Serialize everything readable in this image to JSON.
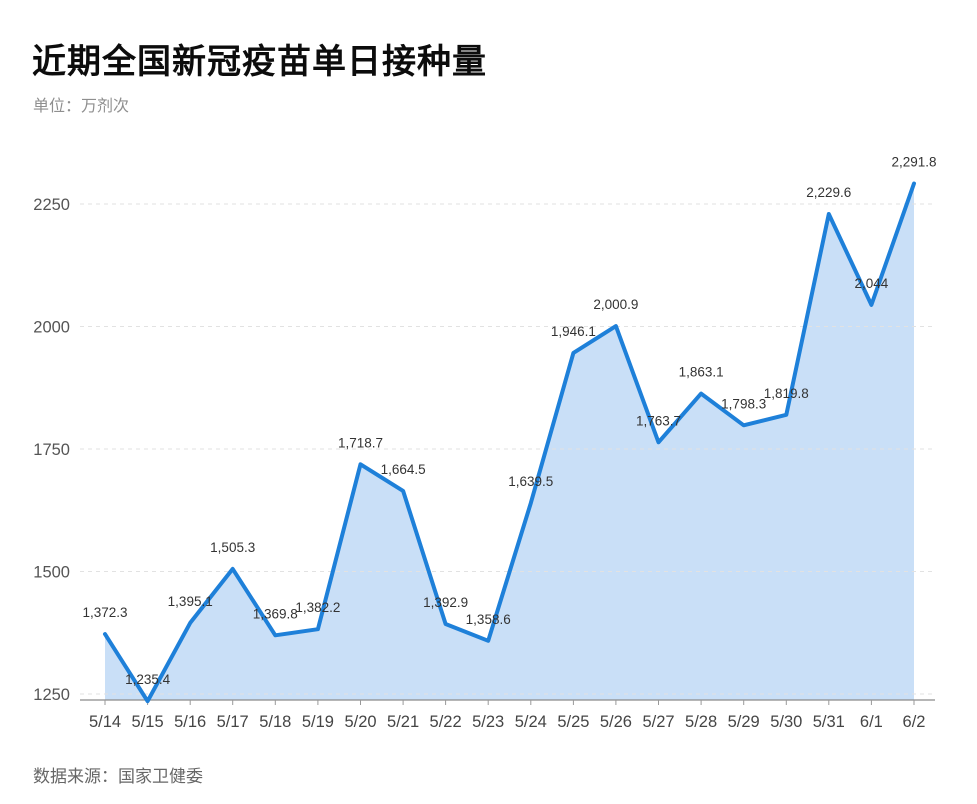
{
  "page": {
    "title": "近期全国新冠疫苗单日接种量",
    "subtitle": "单位：万剂次",
    "source": "数据来源：国家卫健委"
  },
  "colors": {
    "line": "#1e80d9",
    "area_fill": "#c9dff7",
    "grid": "#e2e2e2",
    "axis": "#8a8a8a",
    "tick": "#999999",
    "data_label": "#333333",
    "y_axis_label": "#555555",
    "x_axis_label": "#454545"
  },
  "chart_data": {
    "type": "area",
    "title": "近期全国新冠疫苗单日接种量",
    "unit_label": "单位：万剂次",
    "source_label": "数据来源：国家卫健委",
    "xlabel": "",
    "ylabel": "万剂次",
    "categories": [
      "5/14",
      "5/15",
      "5/16",
      "5/17",
      "5/18",
      "5/19",
      "5/20",
      "5/21",
      "5/22",
      "5/23",
      "5/24",
      "5/25",
      "5/26",
      "5/27",
      "5/28",
      "5/29",
      "5/30",
      "5/31",
      "6/1",
      "6/2"
    ],
    "values": [
      1372.3,
      1235.4,
      1395.1,
      1505.3,
      1369.8,
      1382.2,
      1718.7,
      1664.5,
      1392.9,
      1358.6,
      1639.5,
      1946.1,
      2000.9,
      1763.7,
      1863.1,
      1798.3,
      1819.8,
      2229.6,
      2044,
      2291.8
    ],
    "value_labels": [
      "1,372.3",
      "1,235.4",
      "1,395.1",
      "1,505.3",
      "1,369.8",
      "1,382.2",
      "1,718.7",
      "1,664.5",
      "1,392.9",
      "1,358.6",
      "1,639.5",
      "1,946.1",
      "2,000.9",
      "1,763.7",
      "1,863.1",
      "1,798.3",
      "1,819.8",
      "2,229.6",
      "2,044",
      "2,291.8"
    ],
    "y_ticks": [
      1250,
      1500,
      1750,
      2000,
      2250
    ],
    "ylim": [
      1232,
      2335
    ],
    "grid": true,
    "grid_style": "dashed",
    "legend": "none",
    "data_labels_visible": true
  }
}
